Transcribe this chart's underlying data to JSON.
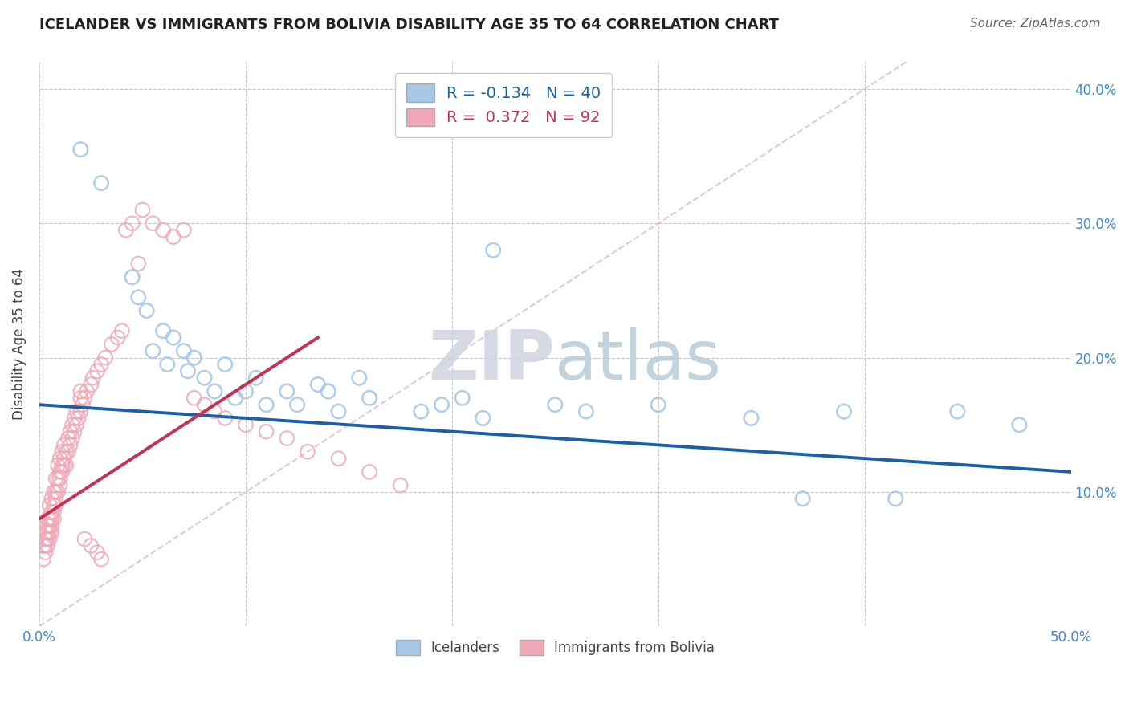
{
  "title": "ICELANDER VS IMMIGRANTS FROM BOLIVIA DISABILITY AGE 35 TO 64 CORRELATION CHART",
  "source": "Source: ZipAtlas.com",
  "ylabel": "Disability Age 35 to 64",
  "xlim": [
    0.0,
    0.5
  ],
  "ylim": [
    0.0,
    0.42
  ],
  "xticks": [
    0.0,
    0.1,
    0.2,
    0.3,
    0.4,
    0.5
  ],
  "yticks": [
    0.1,
    0.2,
    0.3,
    0.4
  ],
  "xticklabels": [
    "0.0%",
    "",
    "",
    "",
    "",
    "50.0%"
  ],
  "yticklabels": [
    "",
    "",
    "",
    ""
  ],
  "right_yticklabels": [
    "10.0%",
    "20.0%",
    "30.0%",
    "40.0%"
  ],
  "legend_r_blue": "-0.134",
  "legend_n_blue": "40",
  "legend_r_pink": "0.372",
  "legend_n_pink": "92",
  "blue_scatter_color": "#a8c8e8",
  "pink_scatter_color": "#f0a8b8",
  "blue_line_color": "#1a5fa8",
  "pink_line_color": "#c83050",
  "diagonal_color": "#e8c0cc",
  "grid_color": "#c8c8c8",
  "axis_label_color": "#4488cc",
  "watermark_zip_color": "#d8dce8",
  "watermark_atlas_color": "#b8c8d8",
  "icelanders_x": [
    0.02,
    0.03,
    0.045,
    0.048,
    0.052,
    0.055,
    0.06,
    0.062,
    0.065,
    0.07,
    0.072,
    0.075,
    0.08,
    0.085,
    0.09,
    0.095,
    0.1,
    0.105,
    0.11,
    0.12,
    0.125,
    0.135,
    0.14,
    0.145,
    0.155,
    0.16,
    0.185,
    0.195,
    0.205,
    0.215,
    0.22,
    0.25,
    0.265,
    0.3,
    0.345,
    0.37,
    0.39,
    0.415,
    0.445,
    0.475
  ],
  "icelanders_y": [
    0.355,
    0.33,
    0.26,
    0.245,
    0.235,
    0.205,
    0.22,
    0.195,
    0.215,
    0.205,
    0.19,
    0.2,
    0.185,
    0.175,
    0.195,
    0.17,
    0.175,
    0.185,
    0.165,
    0.175,
    0.165,
    0.18,
    0.175,
    0.16,
    0.185,
    0.17,
    0.16,
    0.165,
    0.17,
    0.155,
    0.28,
    0.165,
    0.16,
    0.165,
    0.155,
    0.095,
    0.16,
    0.095,
    0.16,
    0.15
  ],
  "bolivia_x": [
    0.002,
    0.002,
    0.003,
    0.003,
    0.003,
    0.003,
    0.004,
    0.004,
    0.004,
    0.004,
    0.004,
    0.005,
    0.005,
    0.005,
    0.005,
    0.005,
    0.006,
    0.006,
    0.006,
    0.006,
    0.006,
    0.007,
    0.007,
    0.007,
    0.007,
    0.008,
    0.008,
    0.008,
    0.008,
    0.009,
    0.009,
    0.009,
    0.01,
    0.01,
    0.01,
    0.01,
    0.011,
    0.011,
    0.011,
    0.012,
    0.012,
    0.012,
    0.013,
    0.013,
    0.014,
    0.014,
    0.015,
    0.015,
    0.016,
    0.016,
    0.017,
    0.017,
    0.018,
    0.018,
    0.019,
    0.02,
    0.02,
    0.021,
    0.022,
    0.023,
    0.025,
    0.026,
    0.028,
    0.03,
    0.032,
    0.035,
    0.038,
    0.04,
    0.042,
    0.045,
    0.048,
    0.05,
    0.055,
    0.06,
    0.065,
    0.07,
    0.075,
    0.08,
    0.085,
    0.09,
    0.1,
    0.11,
    0.12,
    0.13,
    0.145,
    0.16,
    0.175,
    0.02,
    0.022,
    0.025,
    0.028,
    0.03
  ],
  "bolivia_y": [
    0.05,
    0.06,
    0.055,
    0.065,
    0.07,
    0.06,
    0.065,
    0.075,
    0.08,
    0.07,
    0.06,
    0.07,
    0.08,
    0.09,
    0.075,
    0.065,
    0.075,
    0.085,
    0.095,
    0.08,
    0.07,
    0.08,
    0.09,
    0.1,
    0.085,
    0.09,
    0.1,
    0.11,
    0.095,
    0.1,
    0.11,
    0.12,
    0.105,
    0.115,
    0.125,
    0.11,
    0.12,
    0.13,
    0.115,
    0.125,
    0.135,
    0.12,
    0.13,
    0.12,
    0.13,
    0.14,
    0.135,
    0.145,
    0.14,
    0.15,
    0.145,
    0.155,
    0.15,
    0.16,
    0.155,
    0.16,
    0.17,
    0.165,
    0.17,
    0.175,
    0.18,
    0.185,
    0.19,
    0.195,
    0.2,
    0.21,
    0.215,
    0.22,
    0.295,
    0.3,
    0.27,
    0.31,
    0.3,
    0.295,
    0.29,
    0.295,
    0.17,
    0.165,
    0.16,
    0.155,
    0.15,
    0.145,
    0.14,
    0.13,
    0.125,
    0.115,
    0.105,
    0.175,
    0.065,
    0.06,
    0.055,
    0.05
  ]
}
